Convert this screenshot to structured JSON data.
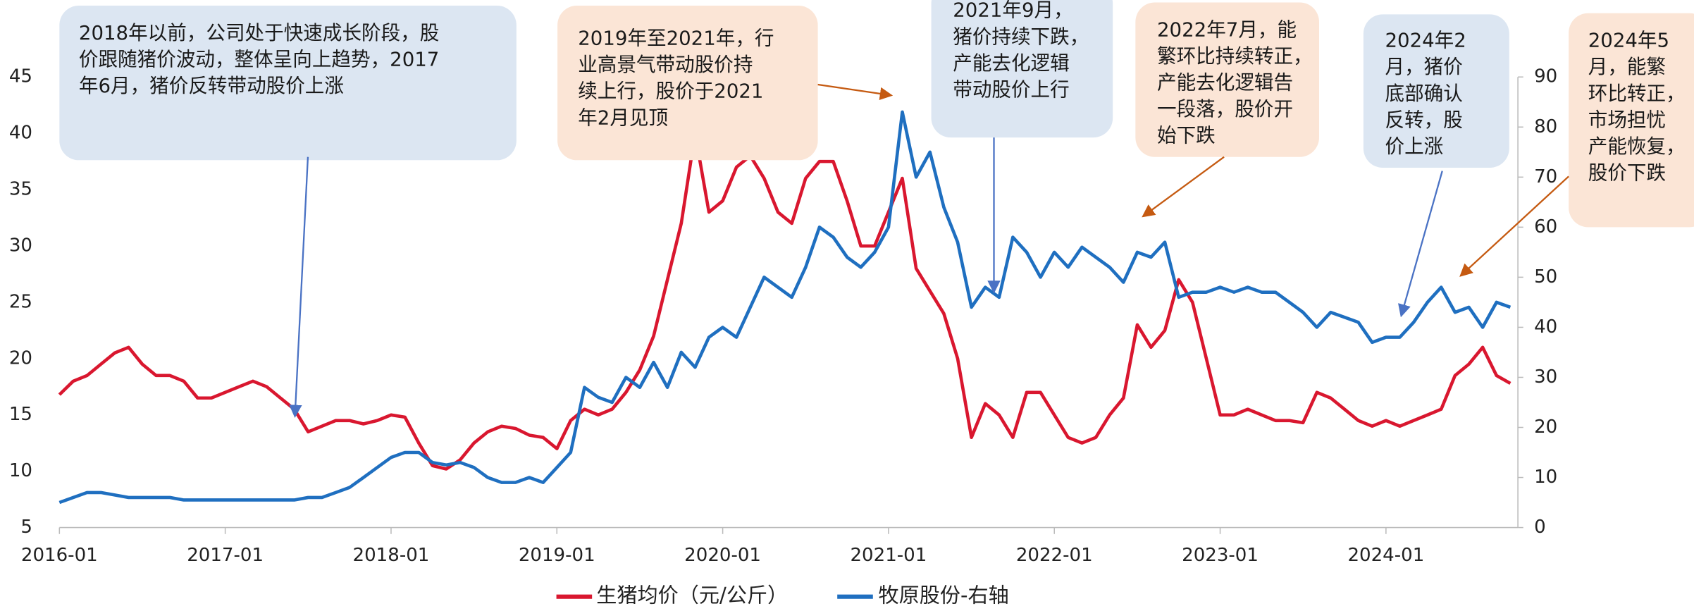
{
  "chart_data": {
    "type": "line",
    "xlim": [
      "2016-01",
      "2024-10"
    ],
    "xticks": [
      "2016-01",
      "2017-01",
      "2018-01",
      "2019-01",
      "2020-01",
      "2021-01",
      "2022-01",
      "2023-01",
      "2024-01"
    ],
    "ylim": [
      5,
      45
    ],
    "yticks": [
      5,
      10,
      15,
      20,
      25,
      30,
      35,
      40,
      45
    ],
    "y2lim": [
      0,
      90
    ],
    "y2ticks": [
      0,
      10,
      20,
      30,
      40,
      50,
      60,
      70,
      80,
      90
    ],
    "x": [
      "2016-01",
      "2016-02",
      "2016-03",
      "2016-04",
      "2016-05",
      "2016-06",
      "2016-07",
      "2016-08",
      "2016-09",
      "2016-10",
      "2016-11",
      "2016-12",
      "2017-01",
      "2017-02",
      "2017-03",
      "2017-04",
      "2017-05",
      "2017-06",
      "2017-07",
      "2017-08",
      "2017-09",
      "2017-10",
      "2017-11",
      "2017-12",
      "2018-01",
      "2018-02",
      "2018-03",
      "2018-04",
      "2018-05",
      "2018-06",
      "2018-07",
      "2018-08",
      "2018-09",
      "2018-10",
      "2018-11",
      "2018-12",
      "2019-01",
      "2019-02",
      "2019-03",
      "2019-04",
      "2019-05",
      "2019-06",
      "2019-07",
      "2019-08",
      "2019-09",
      "2019-10",
      "2019-11",
      "2019-12",
      "2020-01",
      "2020-02",
      "2020-03",
      "2020-04",
      "2020-05",
      "2020-06",
      "2020-07",
      "2020-08",
      "2020-09",
      "2020-10",
      "2020-11",
      "2020-12",
      "2021-01",
      "2021-02",
      "2021-03",
      "2021-04",
      "2021-05",
      "2021-06",
      "2021-07",
      "2021-08",
      "2021-09",
      "2021-10",
      "2021-11",
      "2021-12",
      "2022-01",
      "2022-02",
      "2022-03",
      "2022-04",
      "2022-05",
      "2022-06",
      "2022-07",
      "2022-08",
      "2022-09",
      "2022-10",
      "2022-11",
      "2022-12",
      "2023-01",
      "2023-02",
      "2023-03",
      "2023-04",
      "2023-05",
      "2023-06",
      "2023-07",
      "2023-08",
      "2023-09",
      "2023-10",
      "2023-11",
      "2023-12",
      "2024-01",
      "2024-02",
      "2024-03",
      "2024-04",
      "2024-05",
      "2024-06",
      "2024-07",
      "2024-08",
      "2024-09",
      "2024-10"
    ],
    "series": [
      {
        "name": "生猪均价（元/公斤）",
        "color": "#d9172f",
        "values": [
          16.8,
          18,
          18.5,
          19.5,
          20.5,
          21,
          19.5,
          18.5,
          18.5,
          18,
          16.5,
          16.5,
          17,
          17.5,
          18,
          17.5,
          16.5,
          15.5,
          13.5,
          14,
          14.5,
          14.5,
          14.2,
          14.5,
          15,
          14.8,
          12.5,
          10.5,
          10.2,
          11,
          12.5,
          13.5,
          14,
          13.8,
          13.2,
          13,
          12,
          14.5,
          15.5,
          15,
          15.5,
          17,
          19,
          22,
          27,
          32,
          40,
          33,
          34,
          37,
          38,
          36,
          33,
          32,
          36,
          37.5,
          37.5,
          34,
          30,
          30,
          33,
          36,
          28,
          26,
          24,
          20,
          13,
          16,
          15,
          13,
          17,
          17,
          15,
          13,
          12.5,
          13,
          15,
          16.5,
          23,
          21,
          22.5,
          27,
          25,
          20,
          15,
          15,
          15.5,
          15,
          14.5,
          14.5,
          14.3,
          17,
          16.5,
          15.5,
          14.5,
          14,
          14.5,
          14,
          14.5,
          15,
          15.5,
          18.5,
          19.5,
          21,
          18.5,
          17.8
        ]
      },
      {
        "name": "牧原股份-右轴",
        "color": "#1f6fc0",
        "axis": "y2",
        "values": [
          5,
          6,
          7,
          7,
          6.5,
          6,
          6,
          6,
          6,
          5.5,
          5.5,
          5.5,
          5.5,
          5.5,
          5.5,
          5.5,
          5.5,
          5.5,
          6,
          6,
          7,
          8,
          10,
          12,
          14,
          15,
          15,
          13,
          12.5,
          13,
          12,
          10,
          9,
          9,
          10,
          9,
          12,
          15,
          28,
          26,
          25,
          30,
          28,
          33,
          28,
          35,
          32,
          38,
          40,
          38,
          44,
          50,
          48,
          46,
          52,
          60,
          58,
          54,
          52,
          55,
          60,
          83,
          70,
          75,
          64,
          57,
          44,
          48,
          46,
          58,
          55,
          50,
          55,
          52,
          56,
          54,
          52,
          49,
          55,
          54,
          57,
          46,
          47,
          47,
          48,
          47,
          48,
          47,
          47,
          45,
          43,
          40,
          43,
          42,
          41,
          37,
          38,
          38,
          41,
          45,
          48,
          43,
          44,
          40,
          45,
          44
        ]
      }
    ],
    "annotations": [
      {
        "lines": [
          "2018年以前，公司处于快速成长阶段，股",
          "价跟随猪价波动，整体呈向上趋势，2017",
          "年6月，猪价反转带动股价上涨"
        ]
      },
      {
        "lines": [
          "2019年至2021年，行",
          "业高景气带动股价持",
          "续上行，股价于2021",
          "年2月见顶"
        ]
      },
      {
        "lines": [
          "2021年9月，",
          "猪价持续下跌，",
          "产能去化逻辑",
          "带动股价上行"
        ]
      },
      {
        "lines": [
          "2022年7月，能",
          "繁环比持续转正，",
          "产能去化逻辑告",
          "一段落，股价开",
          "始下跌"
        ]
      },
      {
        "lines": [
          "2024年2",
          "月，猪价",
          "底部确认",
          "反转，股",
          "价上涨"
        ]
      },
      {
        "lines": [
          "2024年5",
          "月，能繁",
          "环比转正，",
          "市场担忧",
          "产能恢复，",
          "股价下跌"
        ]
      }
    ]
  }
}
